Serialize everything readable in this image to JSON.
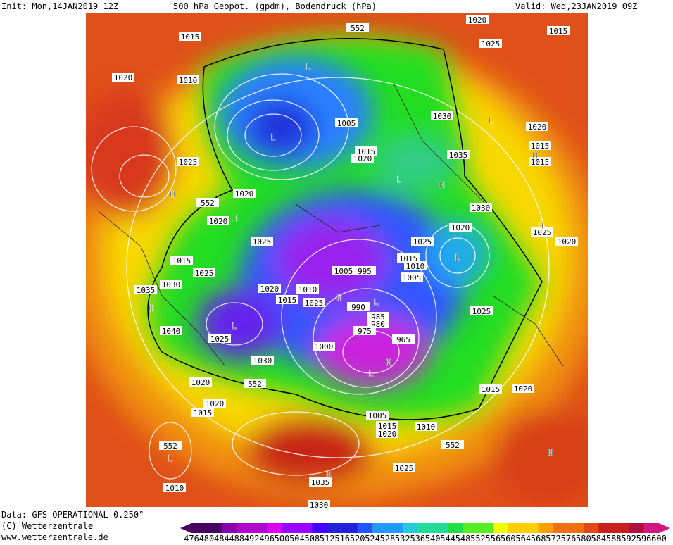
{
  "header": {
    "init": "Init: Mon,14JAN2019 12Z",
    "title": "500 hPa Geopot. (gpdm), Bodendruck (hPa)",
    "valid": "Valid: Wed,23JAN2019 09Z"
  },
  "footer": {
    "data": "Data: GFS OPERATIONAL 0.250°",
    "copyright": "(C) Wetterzentrale",
    "url": "www.wetterzentrale.de"
  },
  "colorbar": {
    "labels": [
      476,
      480,
      484,
      488,
      492,
      496,
      500,
      504,
      508,
      512,
      516,
      520,
      524,
      528,
      532,
      536,
      540,
      544,
      548,
      552,
      556,
      560,
      564,
      568,
      572,
      576,
      580,
      584,
      588,
      592,
      596,
      600
    ]
  },
  "isobars": [
    1015,
    552,
    1020,
    1015,
    1025,
    1020,
    1010,
    1030,
    1005,
    1020,
    1015,
    1020,
    1015,
    1015,
    1025,
    1035,
    1020,
    552,
    1020,
    1030,
    1020,
    1025,
    1020,
    1025,
    1025,
    1015,
    1010,
    1015,
    1025,
    1005,
    995,
    1005,
    1035,
    1030,
    1020,
    1010,
    1015,
    1025,
    990,
    985,
    980,
    975,
    965,
    1000,
    1040,
    1025,
    1030,
    1020,
    552,
    1015,
    1020,
    1020,
    1015,
    1005,
    1015,
    1020,
    1010,
    552,
    552,
    1025,
    1010,
    1035,
    1030,
    1025
  ],
  "markers": [
    "L",
    "L",
    "L",
    "H",
    "L",
    "H",
    "H",
    "H",
    "H",
    "L",
    "H",
    "L",
    "H",
    "L",
    "H",
    "L",
    "L",
    "H",
    "H"
  ]
}
